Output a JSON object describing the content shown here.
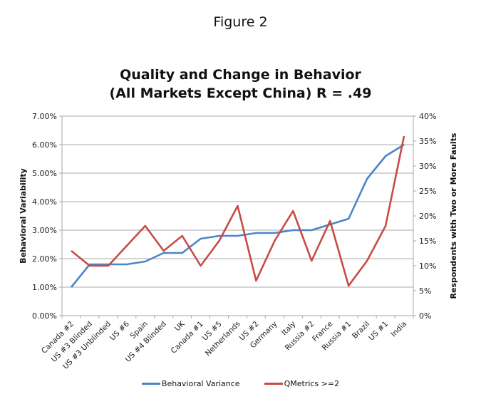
{
  "figure_label": "Figure 2",
  "chart_data": {
    "type": "line",
    "title": [
      "Quality and Change in Behavior",
      "(All Markets Except China) R = .49"
    ],
    "xlabel": "",
    "ylabel": "Behavioral Variability",
    "y2label": "Respondents  with  Two or More Faults",
    "ylim": [
      0,
      7
    ],
    "y2lim": [
      0,
      40
    ],
    "yticks": [
      "0.00%",
      "1.00%",
      "2.00%",
      "3.00%",
      "4.00%",
      "5.00%",
      "6.00%",
      "7.00%"
    ],
    "y2ticks": [
      "0%",
      "5%",
      "10%",
      "15%",
      "20%",
      "25%",
      "30%",
      "35%",
      "40%"
    ],
    "grid": true,
    "legend_position": "bottom",
    "categories": [
      "Canada #2",
      "US #3 Blinded",
      "US #3 Unblinded",
      "US #6",
      "Spain",
      "US #4 Blinded",
      "UK",
      "Canada #1",
      "US #5",
      "Netherlands",
      "US #2",
      "Germany",
      "Italy",
      "Russia #2",
      "France",
      "Russia #1",
      "Brazil",
      "US #1",
      "India"
    ],
    "series": [
      {
        "name": "Behavioral Variance",
        "axis": "left",
        "color": "#4a86c8",
        "values": [
          1.0,
          1.8,
          1.8,
          1.8,
          1.9,
          2.2,
          2.2,
          2.7,
          2.8,
          2.8,
          2.9,
          2.9,
          3.0,
          3.0,
          3.2,
          3.4,
          4.8,
          5.6,
          6.0
        ]
      },
      {
        "name": "QMetrics >=2",
        "axis": "right",
        "color": "#c84b46",
        "values": [
          13,
          10,
          10,
          14,
          18,
          13,
          16,
          10,
          15,
          22,
          7,
          15,
          21,
          11,
          19,
          6,
          11,
          18,
          36
        ]
      }
    ]
  }
}
